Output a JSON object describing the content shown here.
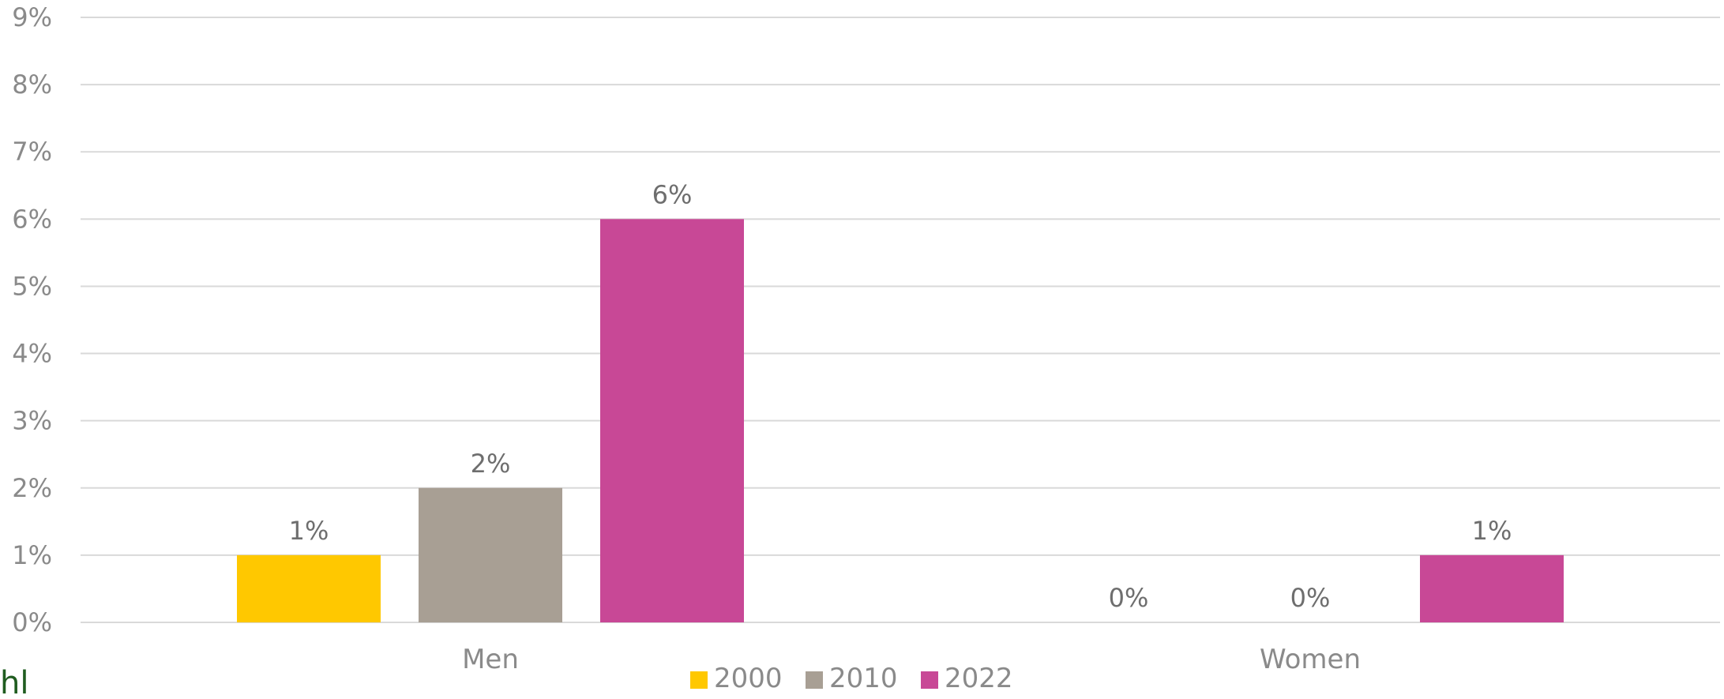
{
  "chart_data": {
    "type": "bar",
    "categories": [
      "Men",
      "Women"
    ],
    "series": [
      {
        "name": "2000",
        "color": "#FFC800",
        "values": [
          1,
          0
        ]
      },
      {
        "name": "2010",
        "color": "#A89F94",
        "values": [
          2,
          0
        ]
      },
      {
        "name": "2022",
        "color": "#C84896",
        "values": [
          6,
          1
        ]
      }
    ],
    "data_labels": [
      [
        "1%",
        "0%"
      ],
      [
        "2%",
        "0%"
      ],
      [
        "6%",
        "1%"
      ]
    ],
    "ylim": [
      0,
      9
    ],
    "y_ticks": [
      "0%",
      "1%",
      "2%",
      "3%",
      "4%",
      "5%",
      "6%",
      "7%",
      "8%",
      "9%"
    ],
    "grid": true,
    "legend_position": "bottom-center"
  },
  "logo_text": "hl"
}
